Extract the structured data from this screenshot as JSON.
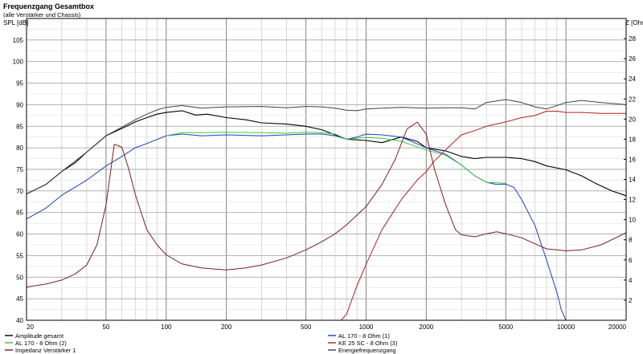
{
  "chart_data": {
    "type": "line",
    "title": "Frequenzgang Gesamtbox",
    "subtitle": "(alle Verstärker und Chassis)",
    "ylabel": "SPL [dB]",
    "y2label": "Z [Ohm]",
    "x_scale": "log",
    "xlim": [
      20,
      20000
    ],
    "ylim": [
      40,
      110
    ],
    "y2lim": [
      0,
      30
    ],
    "grid": true,
    "x_ticks": [
      20,
      50,
      100,
      200,
      500,
      1000,
      2000,
      5000,
      10000,
      20000
    ],
    "x_tick_labels": [
      "20",
      "50",
      "100",
      "200",
      "500",
      "1000",
      "2000",
      "5000",
      "10000",
      "20000"
    ],
    "y_ticks": [
      40,
      45,
      50,
      55,
      60,
      65,
      70,
      75,
      80,
      85,
      90,
      95,
      100,
      105
    ],
    "y_tick_labels": [
      "40",
      "45",
      "50",
      "55",
      "60",
      "65",
      "70",
      "75",
      "80",
      "85",
      "90",
      "95",
      "100",
      "105"
    ],
    "y2_ticks": [
      2,
      4,
      6,
      8,
      10,
      12,
      14,
      16,
      18,
      20,
      22,
      24,
      26,
      28
    ],
    "y2_tick_labels": [
      "2",
      "4",
      "6",
      "8",
      "10",
      "12",
      "14",
      "16",
      "18",
      "20",
      "22",
      "24",
      "26",
      "28"
    ],
    "series": [
      {
        "name": "Amplitude gesamt",
        "axis": "left",
        "color": "#000000",
        "points": [
          [
            20,
            69.3
          ],
          [
            25,
            71.5
          ],
          [
            30,
            74.5
          ],
          [
            35,
            76.5
          ],
          [
            40,
            79
          ],
          [
            45,
            81
          ],
          [
            50,
            82.8
          ],
          [
            60,
            84.5
          ],
          [
            70,
            86
          ],
          [
            80,
            87
          ],
          [
            90,
            87.8
          ],
          [
            100,
            88.2
          ],
          [
            120,
            88.6
          ],
          [
            140,
            87.6
          ],
          [
            160,
            87.8
          ],
          [
            200,
            87
          ],
          [
            250,
            86.5
          ],
          [
            300,
            85.8
          ],
          [
            400,
            85.5
          ],
          [
            500,
            85
          ],
          [
            600,
            84.2
          ],
          [
            700,
            83
          ],
          [
            800,
            82
          ],
          [
            1000,
            81.7
          ],
          [
            1200,
            81.2
          ],
          [
            1500,
            82.5
          ],
          [
            1800,
            81.5
          ],
          [
            2000,
            80
          ],
          [
            2500,
            79.3
          ],
          [
            3000,
            78
          ],
          [
            3500,
            77.5
          ],
          [
            4000,
            77.8
          ],
          [
            5000,
            77.8
          ],
          [
            6000,
            77.5
          ],
          [
            7000,
            76.8
          ],
          [
            8000,
            75.8
          ],
          [
            10000,
            74.9
          ],
          [
            12000,
            73.5
          ],
          [
            14000,
            71.8
          ],
          [
            17000,
            70
          ],
          [
            20000,
            68.9
          ]
        ]
      },
      {
        "name": "AL 170 - 8 Ohm (1)",
        "axis": "left",
        "color": "#1f3fbf",
        "points": [
          [
            20,
            63.5
          ],
          [
            25,
            66
          ],
          [
            30,
            69
          ],
          [
            40,
            72.5
          ],
          [
            50,
            75.8
          ],
          [
            60,
            78
          ],
          [
            70,
            80
          ],
          [
            80,
            81
          ],
          [
            100,
            82.8
          ],
          [
            120,
            83.2
          ],
          [
            150,
            82.8
          ],
          [
            200,
            83
          ],
          [
            300,
            82.8
          ],
          [
            400,
            83
          ],
          [
            500,
            83.2
          ],
          [
            600,
            83.2
          ],
          [
            700,
            82.8
          ],
          [
            800,
            82
          ],
          [
            900,
            82.5
          ],
          [
            1000,
            83.2
          ],
          [
            1200,
            83
          ],
          [
            1500,
            82.5
          ],
          [
            2000,
            80
          ],
          [
            2500,
            78.5
          ],
          [
            3000,
            76
          ],
          [
            3500,
            73.5
          ],
          [
            4000,
            72
          ],
          [
            4500,
            71.5
          ],
          [
            5000,
            71.6
          ],
          [
            5500,
            70.8
          ],
          [
            6000,
            68
          ],
          [
            7000,
            62
          ],
          [
            8000,
            54
          ],
          [
            9000,
            46.5
          ],
          [
            9500,
            42.3
          ],
          [
            10000,
            40
          ]
        ]
      },
      {
        "name": "AL 170 - 8 Ohm (2)",
        "axis": "left",
        "color": "#3cc83c",
        "points": [
          [
            100,
            82.8
          ],
          [
            120,
            83.5
          ],
          [
            150,
            83.5
          ],
          [
            200,
            83.6
          ],
          [
            300,
            83.5
          ],
          [
            400,
            83.4
          ],
          [
            500,
            83.6
          ],
          [
            600,
            83.5
          ],
          [
            700,
            83.2
          ],
          [
            800,
            82
          ],
          [
            1000,
            82.4
          ],
          [
            1200,
            82.2
          ],
          [
            1500,
            81.5
          ],
          [
            2000,
            79.5
          ],
          [
            2500,
            78.3
          ],
          [
            3000,
            76
          ],
          [
            3500,
            73.5
          ],
          [
            4000,
            72
          ],
          [
            5000,
            71.8
          ]
        ]
      },
      {
        "name": "KE 25 SC - 8 Ohm    (3)",
        "axis": "left",
        "color": "#b02020",
        "points": [
          [
            750,
            40
          ],
          [
            800,
            41.5
          ],
          [
            900,
            48
          ],
          [
            1000,
            53
          ],
          [
            1200,
            61
          ],
          [
            1500,
            68
          ],
          [
            1800,
            72.5
          ],
          [
            2000,
            74.5
          ],
          [
            2200,
            77
          ],
          [
            2500,
            79.5
          ],
          [
            3000,
            83
          ],
          [
            3500,
            84
          ],
          [
            4000,
            85
          ],
          [
            5000,
            86
          ],
          [
            6000,
            87
          ],
          [
            7000,
            87.5
          ],
          [
            8000,
            88.5
          ],
          [
            9000,
            88.5
          ],
          [
            10000,
            88.2
          ],
          [
            12000,
            88.2
          ],
          [
            15000,
            88
          ],
          [
            20000,
            88
          ]
        ]
      },
      {
        "name": "Impedanz Verstärker 1",
        "axis": "right",
        "color": "#7a2020",
        "points": [
          [
            20,
            3.3
          ],
          [
            25,
            3.6
          ],
          [
            30,
            4
          ],
          [
            35,
            4.6
          ],
          [
            40,
            5.5
          ],
          [
            45,
            7.5
          ],
          [
            50,
            11.5
          ],
          [
            55,
            17.5
          ],
          [
            60,
            17.2
          ],
          [
            65,
            15
          ],
          [
            70,
            12.5
          ],
          [
            80,
            9
          ],
          [
            90,
            7.5
          ],
          [
            100,
            6.5
          ],
          [
            120,
            5.6
          ],
          [
            150,
            5.2
          ],
          [
            200,
            5
          ],
          [
            250,
            5.2
          ],
          [
            300,
            5.5
          ],
          [
            400,
            6.2
          ],
          [
            500,
            7
          ],
          [
            600,
            7.8
          ],
          [
            700,
            8.6
          ],
          [
            800,
            9.5
          ],
          [
            1000,
            11.3
          ],
          [
            1200,
            13.5
          ],
          [
            1400,
            16
          ],
          [
            1600,
            19
          ],
          [
            1800,
            19.7
          ],
          [
            2000,
            18.5
          ],
          [
            2200,
            15
          ],
          [
            2500,
            11.5
          ],
          [
            2800,
            9
          ],
          [
            3000,
            8.5
          ],
          [
            3500,
            8.3
          ],
          [
            4000,
            8.6
          ],
          [
            4500,
            8.8
          ],
          [
            5000,
            8.6
          ],
          [
            6000,
            8.2
          ],
          [
            7000,
            7.6
          ],
          [
            8000,
            7.1
          ],
          [
            9000,
            7
          ],
          [
            10000,
            6.9
          ],
          [
            12000,
            7
          ],
          [
            15000,
            7.5
          ],
          [
            20000,
            8.7
          ]
        ]
      },
      {
        "name": "Energiefrequenzgang",
        "axis": "left",
        "color": "#404040",
        "points": [
          [
            20,
            69.3
          ],
          [
            25,
            71.5
          ],
          [
            30,
            74.5
          ],
          [
            40,
            79
          ],
          [
            50,
            82.8
          ],
          [
            60,
            84.8
          ],
          [
            70,
            86.5
          ],
          [
            80,
            87.8
          ],
          [
            90,
            88.8
          ],
          [
            100,
            89.4
          ],
          [
            120,
            89.8
          ],
          [
            150,
            89.2
          ],
          [
            200,
            89.5
          ],
          [
            300,
            89.6
          ],
          [
            400,
            89.3
          ],
          [
            500,
            89.6
          ],
          [
            600,
            89.5
          ],
          [
            700,
            89.2
          ],
          [
            800,
            88.7
          ],
          [
            900,
            88.6
          ],
          [
            1000,
            89
          ],
          [
            1200,
            89.2
          ],
          [
            1500,
            89.4
          ],
          [
            2000,
            89.2
          ],
          [
            2500,
            89.3
          ],
          [
            3000,
            89.3
          ],
          [
            3500,
            89
          ],
          [
            4000,
            90.5
          ],
          [
            5000,
            91.2
          ],
          [
            6000,
            90.5
          ],
          [
            7000,
            89.5
          ],
          [
            8000,
            89
          ],
          [
            10000,
            90.5
          ],
          [
            12000,
            91
          ],
          [
            15000,
            90.5
          ],
          [
            20000,
            90
          ]
        ]
      }
    ],
    "legend": {
      "position": "bottom",
      "columns": [
        [
          "Amplitude gesamt",
          "AL 170 - 8 Ohm (2)",
          "Impedanz Verstärker 1"
        ],
        [
          "AL 170 - 8 Ohm (1)",
          "KE 25 SC - 8 Ohm    (3)",
          "Energiefrequenzgang"
        ]
      ]
    }
  }
}
